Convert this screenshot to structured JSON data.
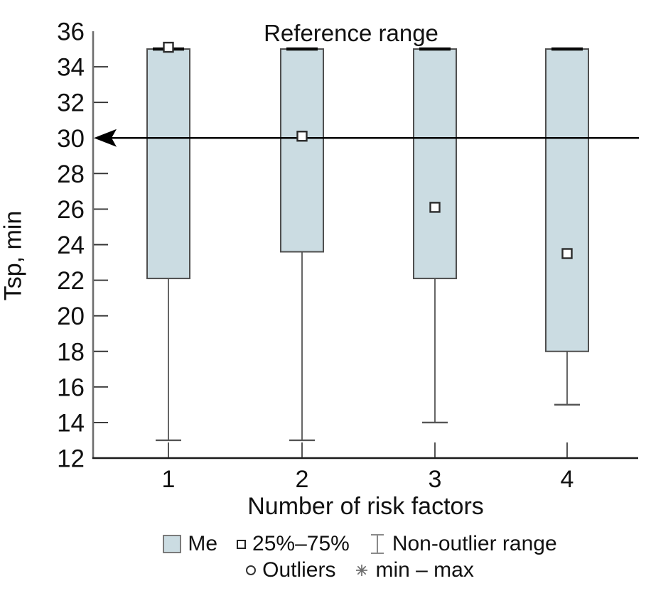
{
  "figure_title": "",
  "chart_data": {
    "type": "boxplot",
    "title": "",
    "xlabel": "Number of risk factors",
    "ylabel": "Tsp, min",
    "ylim": [
      12,
      36
    ],
    "y_ticks": [
      36,
      34,
      32,
      30,
      28,
      26,
      24,
      22,
      20,
      18,
      16,
      14,
      12
    ],
    "tick_marks_omitted": [
      36,
      30,
      12
    ],
    "categories": [
      "1",
      "2",
      "3",
      "4"
    ],
    "grid": "off",
    "reference_line": {
      "y": 30,
      "label": "Reference range",
      "arrow": "points-left-to-axis"
    },
    "series": [
      {
        "category": "1",
        "box_high": 35,
        "box_low": 22.1,
        "median_marker": 35.1,
        "cap_high": 35,
        "whisker_low": 13
      },
      {
        "category": "2",
        "box_high": 35,
        "box_low": 23.6,
        "median_marker": 30.1,
        "cap_high": 35,
        "whisker_low": 13
      },
      {
        "category": "3",
        "box_high": 35,
        "box_low": 22.1,
        "median_marker": 26.1,
        "cap_high": 35,
        "whisker_low": 14
      },
      {
        "category": "4",
        "box_high": 35,
        "box_low": 18.0,
        "median_marker": 23.5,
        "cap_high": 35,
        "whisker_low": 15
      }
    ],
    "outliers_shown": false,
    "colors": {
      "box_fill": "#cbdce2",
      "box_border": "#4f4f4f",
      "whisker": "#555555",
      "axis_y": "#6e6e6e",
      "axis_x": "#1a1a1a",
      "arrow": "#000000",
      "text": "#111111"
    }
  },
  "legend": {
    "rows": [
      [
        {
          "icon": "box-swatch",
          "label": "Me"
        },
        {
          "icon": "open-square",
          "label": "25%–75%"
        },
        {
          "icon": "whisker-range",
          "label": "Non-outlier range"
        }
      ],
      [
        {
          "icon": "circle",
          "label": "Outliers"
        },
        {
          "icon": "asterisk",
          "label": "min – max"
        }
      ]
    ]
  }
}
